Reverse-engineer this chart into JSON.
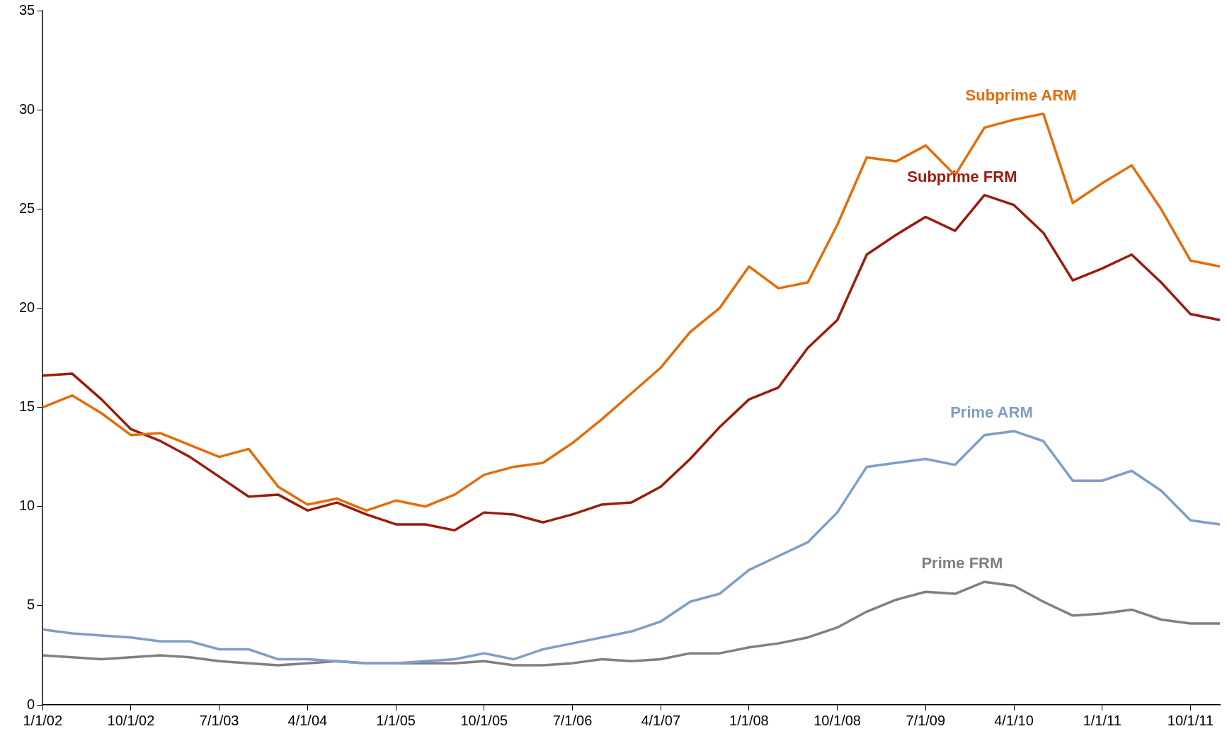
{
  "chart_data": {
    "type": "line",
    "categories": [
      "1/1/02",
      null,
      null,
      "10/1/02",
      null,
      null,
      "7/1/03",
      null,
      null,
      "4/1/04",
      null,
      null,
      "1/1/05",
      null,
      null,
      "10/1/05",
      null,
      null,
      "7/1/06",
      null,
      null,
      "4/1/07",
      null,
      null,
      "1/1/08",
      null,
      null,
      "10/1/08",
      null,
      null,
      "7/1/09",
      null,
      null,
      "4/1/10",
      null,
      null,
      "1/1/11",
      null,
      null,
      "10/1/11",
      null
    ],
    "series": [
      {
        "name": "Subprime ARM",
        "color": "#e46c0a",
        "values": [
          15.0,
          15.6,
          14.7,
          13.6,
          13.7,
          13.1,
          12.5,
          12.9,
          11.0,
          10.1,
          10.4,
          9.8,
          10.3,
          10.0,
          10.6,
          11.6,
          12.0,
          12.2,
          13.2,
          14.4,
          15.7,
          17.0,
          18.8,
          20.0,
          22.1,
          21.0,
          21.3,
          24.2,
          27.6,
          27.4,
          28.2,
          26.7,
          29.1,
          29.5,
          29.8,
          25.3,
          26.3,
          27.2,
          25.0,
          22.4,
          22.1
        ]
      },
      {
        "name": "Subprime FRM",
        "color": "#9b1c0c",
        "values": [
          16.6,
          16.7,
          15.4,
          13.9,
          13.3,
          12.5,
          11.5,
          10.5,
          10.6,
          9.8,
          10.2,
          9.6,
          9.1,
          9.1,
          8.8,
          9.7,
          9.6,
          9.2,
          9.6,
          10.1,
          10.2,
          11.0,
          12.4,
          14.0,
          15.4,
          16.0,
          18.0,
          19.4,
          22.7,
          23.7,
          24.6,
          23.9,
          25.7,
          25.2,
          23.8,
          21.4,
          22.0,
          22.7,
          21.3,
          19.7,
          19.4
        ]
      },
      {
        "name": "Prime ARM",
        "color": "#7f9ec6",
        "values": [
          3.8,
          3.6,
          3.5,
          3.4,
          3.2,
          3.2,
          2.8,
          2.8,
          2.3,
          2.3,
          2.2,
          2.1,
          2.1,
          2.2,
          2.3,
          2.6,
          2.3,
          2.8,
          3.1,
          3.4,
          3.7,
          4.2,
          5.2,
          5.6,
          6.8,
          7.5,
          8.2,
          9.7,
          12.0,
          12.2,
          12.4,
          12.1,
          13.6,
          13.8,
          13.3,
          11.3,
          11.3,
          11.8,
          10.8,
          9.3,
          9.1
        ]
      },
      {
        "name": "Prime FRM",
        "color": "#808080",
        "values": [
          2.5,
          2.4,
          2.3,
          2.4,
          2.5,
          2.4,
          2.2,
          2.1,
          2.0,
          2.1,
          2.2,
          2.1,
          2.1,
          2.1,
          2.1,
          2.2,
          2.0,
          2.0,
          2.1,
          2.3,
          2.2,
          2.3,
          2.6,
          2.6,
          2.9,
          3.1,
          3.4,
          3.9,
          4.7,
          5.3,
          5.7,
          5.6,
          6.2,
          6.0,
          5.2,
          4.5,
          4.6,
          4.8,
          4.3,
          4.1,
          4.1
        ]
      }
    ],
    "ylim": [
      0,
      35
    ],
    "yticks": [
      0,
      5,
      10,
      15,
      20,
      25,
      30,
      35
    ],
    "grid": false,
    "legend": false,
    "marker": "none",
    "line_style": "solid"
  }
}
